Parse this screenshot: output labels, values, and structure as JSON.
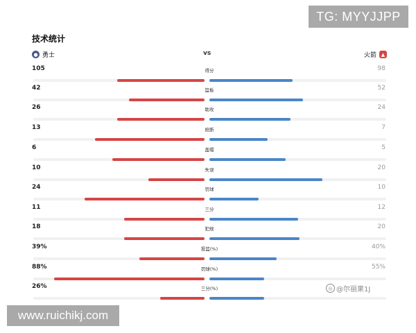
{
  "title": "技术统计",
  "vs_label": "vs",
  "teams": {
    "left": {
      "name": "勇士",
      "color": "#d64545",
      "logo_icon": "warriors-logo-icon"
    },
    "right": {
      "name": "火箭",
      "color": "#4a86c8",
      "logo_icon": "rockets-logo-icon"
    }
  },
  "stats": [
    {
      "label": "得分",
      "left": "105",
      "right": "98",
      "left_fill": 0.51,
      "right_fill": 0.47
    },
    {
      "label": "篮板",
      "left": "42",
      "right": "52",
      "left_fill": 0.44,
      "right_fill": 0.53
    },
    {
      "label": "助攻",
      "left": "26",
      "right": "24",
      "left_fill": 0.51,
      "right_fill": 0.46
    },
    {
      "label": "抢断",
      "left": "13",
      "right": "7",
      "left_fill": 0.64,
      "right_fill": 0.33
    },
    {
      "label": "盖帽",
      "left": "6",
      "right": "5",
      "left_fill": 0.54,
      "right_fill": 0.43
    },
    {
      "label": "失误",
      "left": "10",
      "right": "20",
      "left_fill": 0.33,
      "right_fill": 0.64
    },
    {
      "label": "罚球",
      "left": "24",
      "right": "10",
      "left_fill": 0.7,
      "right_fill": 0.28
    },
    {
      "label": "三分",
      "left": "11",
      "right": "12",
      "left_fill": 0.47,
      "right_fill": 0.5
    },
    {
      "label": "犯规",
      "left": "18",
      "right": "20",
      "left_fill": 0.47,
      "right_fill": 0.51
    },
    {
      "label": "投篮(%)",
      "left": "39%",
      "right": "40%",
      "left_fill": 0.38,
      "right_fill": 0.38
    },
    {
      "label": "罚球(%)",
      "left": "88%",
      "right": "55%",
      "left_fill": 0.88,
      "right_fill": 0.31
    },
    {
      "label": "三分(%)",
      "left": "26%",
      "right": "",
      "left_fill": 0.26,
      "right_fill": 0.31
    }
  ],
  "watermarks": {
    "tg": "TG: MYYJJPP",
    "url": "www.ruichikj.com",
    "author": "@尔丽果1J"
  }
}
